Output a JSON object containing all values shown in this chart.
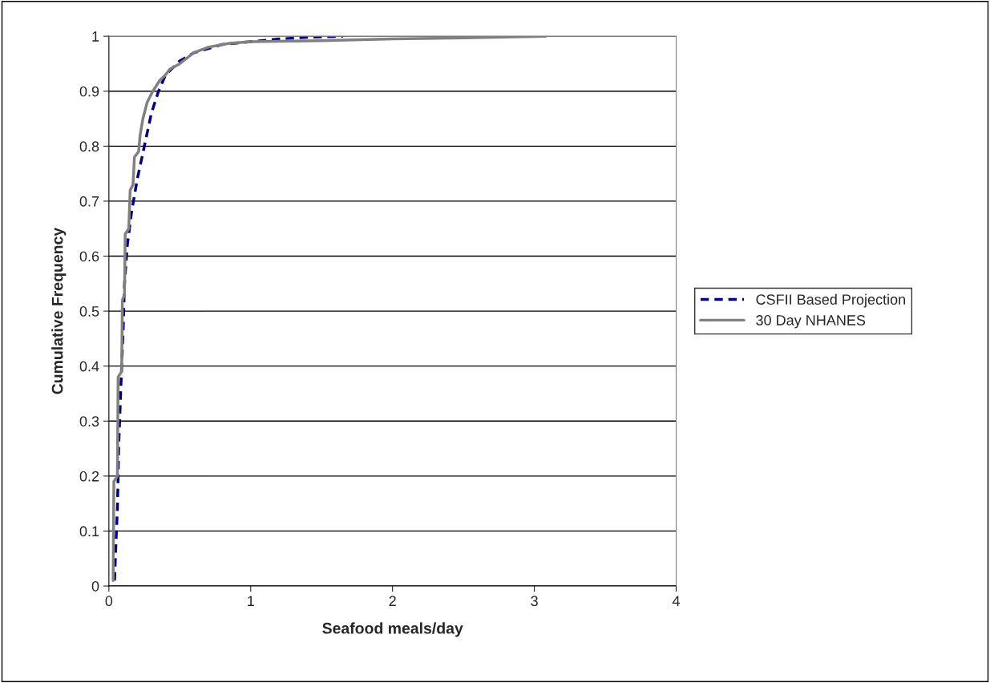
{
  "chart_data": {
    "type": "line",
    "xlabel": "Seafood meals/day",
    "ylabel": "Cumulative Frequency",
    "xlim": [
      0,
      4
    ],
    "xticks": [
      0,
      1,
      2,
      3,
      4
    ],
    "ylim": [
      0,
      1
    ],
    "yticks": [
      0,
      0.1,
      0.2,
      0.3,
      0.4,
      0.5,
      0.6,
      0.7,
      0.8,
      0.9,
      1
    ],
    "grid": "y",
    "legend": "right",
    "series": [
      {
        "name": "CSFII Based Projection",
        "color": "#000080",
        "line_style": "dashed",
        "x": [
          0.04,
          0.05,
          0.06,
          0.07,
          0.08,
          0.09,
          0.1,
          0.11,
          0.13,
          0.16,
          0.2,
          0.25,
          0.3,
          0.35,
          0.4,
          0.5,
          0.6,
          0.8,
          1.0,
          1.2,
          1.4,
          1.65
        ],
        "values": [
          0.01,
          0.08,
          0.14,
          0.26,
          0.33,
          0.4,
          0.46,
          0.55,
          0.62,
          0.68,
          0.74,
          0.8,
          0.86,
          0.9,
          0.93,
          0.955,
          0.97,
          0.985,
          0.99,
          0.995,
          0.998,
          1.0
        ]
      },
      {
        "name": "30 Day NHANES",
        "color": "#808080",
        "line_style": "solid",
        "x": [
          0.03,
          0.035,
          0.06,
          0.065,
          0.09,
          0.095,
          0.11,
          0.115,
          0.14,
          0.15,
          0.17,
          0.18,
          0.21,
          0.22,
          0.24,
          0.27,
          0.31,
          0.36,
          0.4,
          0.43,
          0.5,
          0.6,
          0.7,
          0.85,
          1.0,
          1.5,
          2.0,
          2.5,
          3.08
        ],
        "values": [
          0.01,
          0.19,
          0.2,
          0.38,
          0.39,
          0.52,
          0.53,
          0.64,
          0.65,
          0.72,
          0.73,
          0.78,
          0.79,
          0.82,
          0.85,
          0.88,
          0.9,
          0.92,
          0.93,
          0.94,
          0.95,
          0.97,
          0.98,
          0.987,
          0.99,
          0.992,
          0.995,
          0.997,
          1.0
        ]
      }
    ]
  }
}
